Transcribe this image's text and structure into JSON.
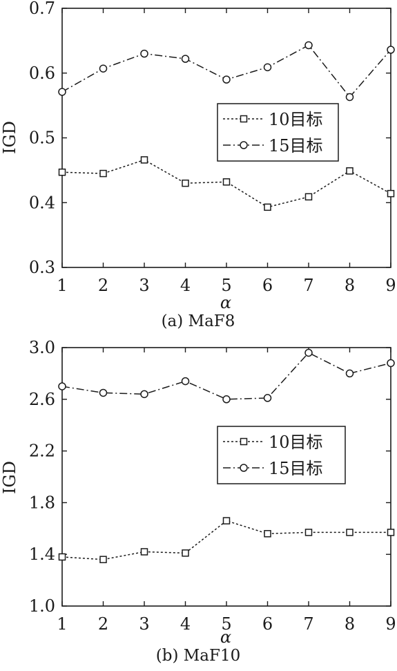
{
  "chart_data": [
    {
      "type": "line",
      "caption": "(a) MaF8",
      "xlabel": "α",
      "ylabel": "IGD",
      "x": [
        1,
        2,
        3,
        4,
        5,
        6,
        7,
        8,
        9
      ],
      "xlim": [
        1,
        9
      ],
      "ylim": [
        0.3,
        0.7
      ],
      "yticks": [
        "0.3",
        "0.4",
        "0.5",
        "0.6",
        "0.7"
      ],
      "xticks": [
        "1",
        "2",
        "3",
        "4",
        "5",
        "6",
        "7",
        "8",
        "9"
      ],
      "legend_position": "center-right",
      "series": [
        {
          "name": "10目标",
          "marker": "square",
          "line": "dotted",
          "values": [
            0.447,
            0.445,
            0.466,
            0.43,
            0.432,
            0.393,
            0.409,
            0.449,
            0.414
          ]
        },
        {
          "name": "15目标",
          "marker": "circle",
          "line": "dash-dot",
          "values": [
            0.571,
            0.607,
            0.63,
            0.622,
            0.59,
            0.609,
            0.643,
            0.563,
            0.636
          ]
        }
      ]
    },
    {
      "type": "line",
      "caption": "(b) MaF10",
      "xlabel": "α",
      "ylabel": "IGD",
      "x": [
        1,
        2,
        3,
        4,
        5,
        6,
        7,
        8,
        9
      ],
      "xlim": [
        1,
        9
      ],
      "ylim": [
        1.0,
        3.0
      ],
      "yticks": [
        "1.0",
        "1.4",
        "1.8",
        "2.2",
        "2.6",
        "3.0"
      ],
      "xticks": [
        "1",
        "2",
        "3",
        "4",
        "5",
        "6",
        "7",
        "8",
        "9"
      ],
      "legend_position": "center-right",
      "series": [
        {
          "name": "10目标",
          "marker": "square",
          "line": "dotted",
          "values": [
            1.38,
            1.36,
            1.42,
            1.41,
            1.66,
            1.56,
            1.57,
            1.57,
            1.57
          ]
        },
        {
          "name": "15目标",
          "marker": "circle",
          "line": "dash-dot",
          "values": [
            2.7,
            2.65,
            2.64,
            2.74,
            2.6,
            2.61,
            2.96,
            2.8,
            2.88
          ]
        }
      ]
    }
  ]
}
